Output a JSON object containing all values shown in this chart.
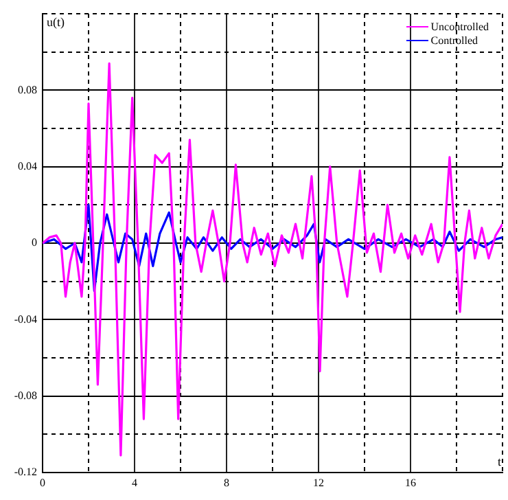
{
  "chart_data": {
    "type": "line",
    "xlabel": "t",
    "ylabel": "u(t)",
    "xlim": [
      0,
      20
    ],
    "ylim": [
      -0.12,
      0.12
    ],
    "xticks": [
      0,
      {
        "value": 2,
        "label": null
      },
      4,
      {
        "value": 6,
        "label": null
      },
      8,
      {
        "value": 10,
        "label": null
      },
      12,
      {
        "value": 14,
        "label": null
      },
      16,
      {
        "value": 18,
        "label": null
      },
      {
        "value": 20,
        "label": null
      }
    ],
    "yticks": [
      -0.12,
      {
        "value": -0.1,
        "label": null
      },
      -0.08,
      {
        "value": -0.06,
        "label": null
      },
      -0.04,
      {
        "value": -0.02,
        "label": null
      },
      0,
      {
        "value": 0.02,
        "label": null
      },
      0.04,
      {
        "value": 0.06,
        "label": null
      },
      0.08,
      {
        "value": 0.1,
        "label": null
      },
      {
        "value": 0.12,
        "label": null
      }
    ],
    "grid": true,
    "legend": "top right",
    "marker": "none",
    "line_style": "solid",
    "series": [
      {
        "name": "Uncontrolled",
        "color": "#ff00ff",
        "x": [
          0,
          0.3,
          0.6,
          0.8,
          1.0,
          1.2,
          1.4,
          1.7,
          1.85,
          2.0,
          2.15,
          2.4,
          2.6,
          2.9,
          3.15,
          3.4,
          3.65,
          3.9,
          4.15,
          4.4,
          4.65,
          4.9,
          5.2,
          5.5,
          5.7,
          5.9,
          6.15,
          6.4,
          6.65,
          6.9,
          7.15,
          7.4,
          7.65,
          7.9,
          8.15,
          8.4,
          8.7,
          8.9,
          9.2,
          9.5,
          9.8,
          10.1,
          10.4,
          10.7,
          11.0,
          11.3,
          11.7,
          11.9,
          12.06,
          12.25,
          12.5,
          12.8,
          13.25,
          13.5,
          13.8,
          14.1,
          14.4,
          14.7,
          15.0,
          15.3,
          15.6,
          15.9,
          16.2,
          16.5,
          16.9,
          17.2,
          17.45,
          17.7,
          17.95,
          18.15,
          18.35,
          18.55,
          18.8,
          19.1,
          19.4,
          19.7,
          20
        ],
        "values": [
          0,
          0.003,
          0.004,
          0,
          -0.028,
          -0.01,
          0,
          -0.028,
          0,
          0.073,
          0.02,
          -0.074,
          -0.01,
          0.094,
          0,
          -0.111,
          0,
          0.076,
          0,
          -0.092,
          0,
          0.046,
          0.042,
          0.047,
          0,
          -0.092,
          0,
          0.054,
          0,
          -0.015,
          0.002,
          0.017,
          0,
          -0.02,
          0,
          0.041,
          0,
          -0.01,
          0.008,
          -0.006,
          0.005,
          -0.012,
          0.004,
          -0.005,
          0.01,
          -0.008,
          0.035,
          0,
          -0.067,
          0,
          0.04,
          0,
          -0.028,
          0,
          0.038,
          -0.005,
          0.005,
          -0.015,
          0.02,
          -0.005,
          0.005,
          -0.008,
          0.004,
          -0.006,
          0.01,
          -0.01,
          0,
          0.045,
          0,
          -0.036,
          0,
          0.017,
          -0.008,
          0.008,
          -0.008,
          0.004,
          0.01
        ]
      },
      {
        "name": "Controlled",
        "color": "#0000ff",
        "x": [
          0,
          0.5,
          1.0,
          1.4,
          1.7,
          2.0,
          2.25,
          2.5,
          2.8,
          3.1,
          3.3,
          3.6,
          3.9,
          4.2,
          4.5,
          4.8,
          5.1,
          5.5,
          5.8,
          6.0,
          6.3,
          6.7,
          7.0,
          7.4,
          7.8,
          8.2,
          8.6,
          9.0,
          9.5,
          10,
          10.5,
          11,
          11.5,
          11.8,
          12.05,
          12.3,
          12.8,
          13.3,
          14,
          14.6,
          15.2,
          15.8,
          16.4,
          17,
          17.4,
          17.7,
          18.1,
          18.6,
          19.2,
          19.7,
          20
        ],
        "values": [
          0,
          0.002,
          -0.003,
          0,
          -0.01,
          0.02,
          -0.025,
          0,
          0.015,
          0,
          -0.01,
          0.005,
          0.002,
          -0.012,
          0.005,
          -0.012,
          0.005,
          0.016,
          0,
          -0.01,
          0.003,
          -0.003,
          0.003,
          -0.004,
          0.003,
          -0.003,
          0.002,
          -0.002,
          0.002,
          -0.003,
          0.002,
          -0.002,
          0.004,
          0.01,
          -0.01,
          0.002,
          -0.002,
          0.002,
          -0.003,
          0.002,
          -0.002,
          0.002,
          -0.002,
          0.002,
          -0.002,
          0.006,
          -0.004,
          0.002,
          -0.002,
          0.002,
          0.003
        ]
      }
    ]
  }
}
